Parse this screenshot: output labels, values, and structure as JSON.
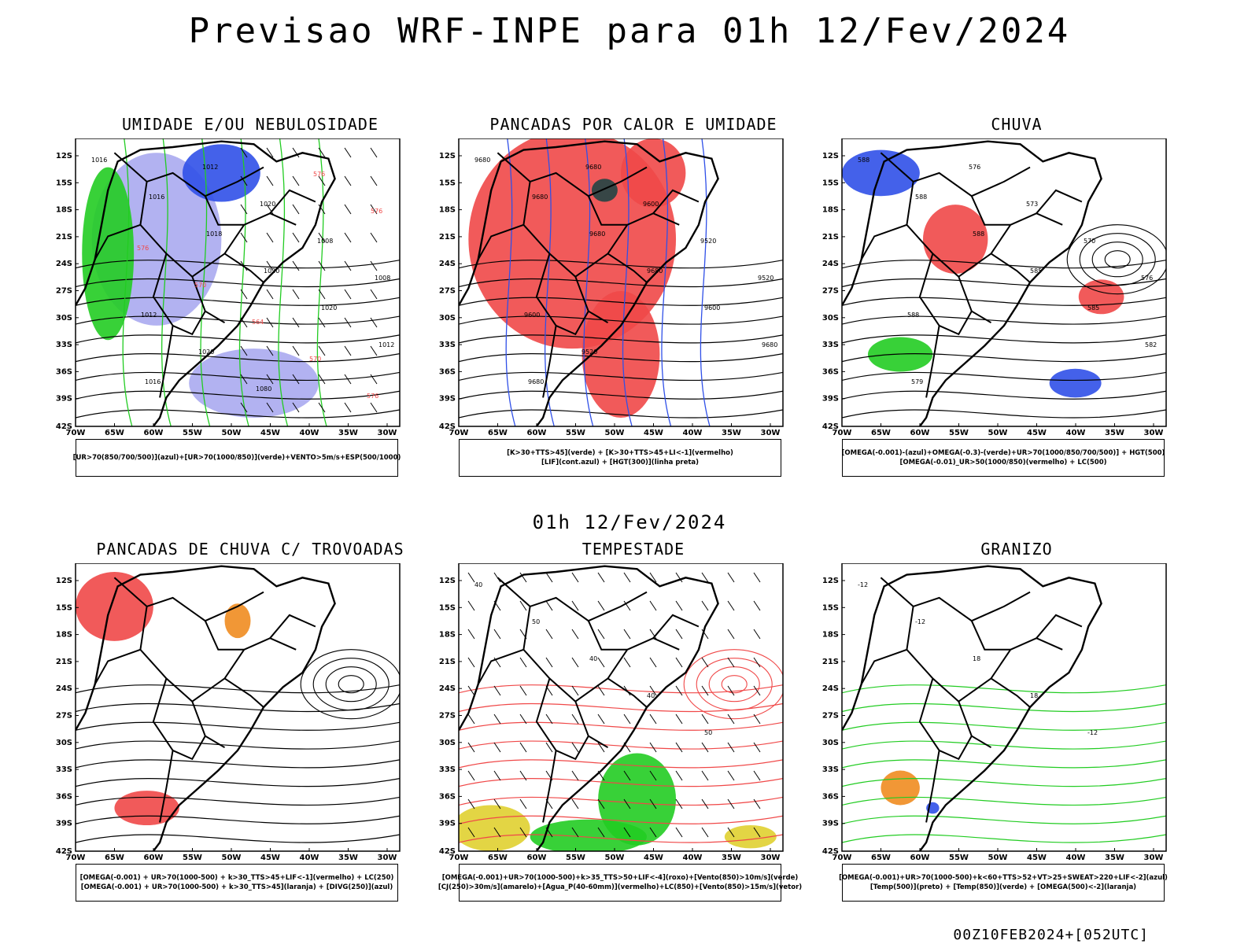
{
  "title": "Previsao WRF-INPE  para 01h 12/Fev/2024",
  "mid_label": "01h 12/Fev/2024",
  "footer": "00Z10FEB2024+[052UTC]",
  "lat_ticks": [
    "12S",
    "15S",
    "18S",
    "21S",
    "24S",
    "27S",
    "30S",
    "33S",
    "36S",
    "39S",
    "42S"
  ],
  "lon_ticks": [
    "70W",
    "65W",
    "60W",
    "55W",
    "50W",
    "45W",
    "40W",
    "35W",
    "30W"
  ],
  "colors": {
    "red": "#f04848",
    "lightblue": "#aaaaf0",
    "blue": "#3050e8",
    "green": "#22cc22",
    "orange": "#f08c20",
    "yellow": "#e0d030",
    "darkgreen": "#224444",
    "purple": "#9922cc"
  },
  "panels": [
    {
      "title": "UMIDADE E/OU NEBULOSIDADE",
      "legend": [
        "[UR>70(850/700/500)](azul)+[UR>70(1000/850)](verde)+VENTO>5m/s+ESP(500/1000)"
      ],
      "contour_labels": [
        "1016",
        "1016",
        "1018",
        "1020",
        "1020",
        "1012",
        "1016",
        "1012",
        "1020",
        "1008",
        "1008",
        "1012",
        "1020",
        "1080",
        "576",
        "576",
        "576",
        "570",
        "564",
        "570",
        "576"
      ]
    },
    {
      "title": "PANCADAS POR CALOR E UMIDADE",
      "legend": [
        "[K>30+TTS>45](verde) + [K>30+TTS>45+LI<-1](vermelho)",
        "[LIF](cont.azul) + [HGT(300)](linha preta)"
      ],
      "contour_labels": [
        "9680",
        "9680",
        "9680",
        "9680",
        "9600",
        "9680",
        "9680",
        "9680",
        "9600",
        "9520",
        "9520",
        "9600",
        "9520"
      ]
    },
    {
      "title": "CHUVA",
      "legend": [
        "[OMEGA(-0.001)-(azul)+OMEGA(-0.3)-(verde)+UR>70(1000/850/700/500)] + HGT(500)",
        "[OMEGA(-0.01)_UR>50(1000/850)(vermelho) + LC(500)"
      ],
      "contour_labels": [
        "588",
        "588",
        "588",
        "585",
        "585",
        "582",
        "579",
        "576",
        "573",
        "570",
        "576",
        "588"
      ]
    },
    {
      "title": "PANCADAS DE CHUVA C/ TROVOADAS",
      "legend": [
        "[OMEGA(-0.001) + UR>70(1000-500) + k>30_TTS>45+LIF<-1](vermelho) + LC(250)",
        "[OMEGA(-0.001) + UR>70(1000-500) + k>30_TTS>45](laranja) + [DIVG(250)](azul)"
      ],
      "contour_labels": []
    },
    {
      "title": "TEMPESTADE",
      "legend": [
        "[OMEGA(-0.001)+UR>70(1000-500)+k>35_TTS>50+LIF<-4](roxo)+[Vento(850)>10m/s](verde)",
        "[CJ(250)>30m/s](amarelo)+[Agua_P(40-60mm)](vermelho)+LC(850)+[Vento(850)>15m/s](vetor)"
      ],
      "contour_labels": [
        "40",
        "50",
        "40",
        "40",
        "50"
      ]
    },
    {
      "title": "GRANIZO",
      "legend": [
        "[OMEGA(-0.001)+UR>70(1000-500)+k<60+TTS>52+VT>25+SWEAT>220+LIF<-2](azul)",
        "[Temp(500)](preto) + [Temp(850)](verde) + [OMEGA(500)<-2](laranja)"
      ],
      "contour_labels": [
        "-12",
        "-12",
        "18",
        "18",
        "-12"
      ]
    }
  ]
}
